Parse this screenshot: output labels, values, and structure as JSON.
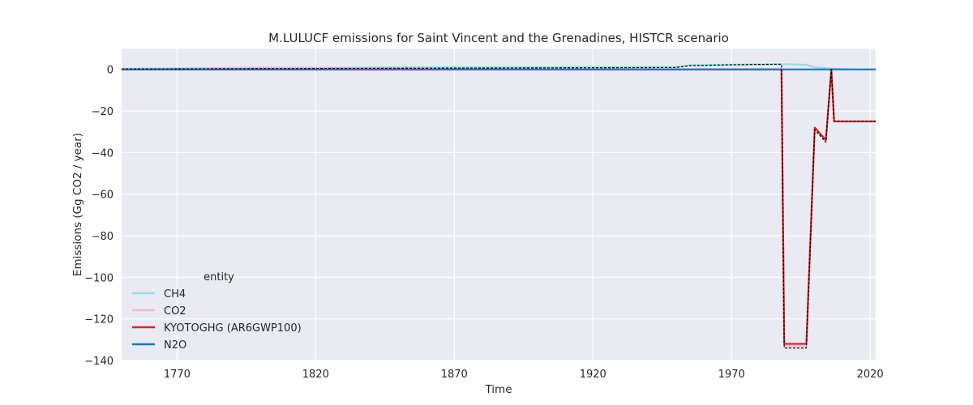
{
  "chart_data": {
    "type": "line",
    "title": "M.LULUCF emissions for Saint Vincent and the Grenadines, HISTCR scenario",
    "xlabel": "Time",
    "ylabel": "Emissions (Gg CO2 / year)",
    "xlim": [
      1750,
      2022
    ],
    "ylim": [
      -140,
      10
    ],
    "xticks": [
      1770,
      1820,
      1870,
      1920,
      1970,
      2020
    ],
    "yticks": [
      0,
      -20,
      -40,
      -60,
      -80,
      -100,
      -120,
      -140
    ],
    "tick_labels": {
      "x": [
        "1770",
        "1820",
        "1870",
        "1920",
        "1970",
        "2020"
      ],
      "y": [
        "0",
        "−20",
        "−40",
        "−60",
        "−80",
        "−100",
        "−120",
        "−140"
      ]
    },
    "grid": true,
    "legend": {
      "title": "entity",
      "placement": "lower-left",
      "entries": [
        "CH4",
        "CO2",
        "KYOTOGHG (AR6GWP100)",
        "N2O"
      ]
    },
    "colors": {
      "CH4": "#9edae5",
      "CO2": "#f7b6d2",
      "KYOTOGHG": "#d62728",
      "N2O": "#1f77b4",
      "total_dashed": "#000000",
      "background": "#eaeaf2",
      "grid": "#ffffff"
    },
    "series": [
      {
        "name": "CH4",
        "x": [
          1750,
          1800,
          1850,
          1900,
          1950,
          1955,
          1970,
          1980,
          1990,
          1997,
          2000,
          2005,
          2010,
          2015,
          2022
        ],
        "y": [
          0.3,
          0.8,
          1.0,
          1.1,
          1.2,
          2.0,
          2.3,
          2.5,
          2.5,
          2.2,
          1.0,
          0.5,
          0.2,
          0.0,
          0.0
        ]
      },
      {
        "name": "CO2",
        "x": [
          1750,
          1988,
          1989,
          1996,
          1997,
          2000,
          2004,
          2006,
          2007,
          2022
        ],
        "y": [
          0,
          0,
          -133,
          -133,
          -133,
          -28,
          -34,
          0,
          -25,
          -25
        ]
      },
      {
        "name": "KYOTOGHG (AR6GWP100)",
        "x": [
          1750,
          1988,
          1989,
          1996,
          1997,
          2000,
          2004,
          2006,
          2007,
          2022
        ],
        "y": [
          0,
          0,
          -132,
          -132,
          -132,
          -28,
          -34,
          0,
          -25,
          -25
        ]
      },
      {
        "name": "N2O",
        "x": [
          1750,
          2022
        ],
        "y": [
          0,
          0
        ]
      },
      {
        "name": "",
        "x": [
          1750,
          1950,
          1955,
          1970,
          1988,
          1989,
          1996,
          1997,
          2000,
          2004,
          2006,
          2007,
          2022
        ],
        "y": [
          0.2,
          0.9,
          1.8,
          2.2,
          2.5,
          -134,
          -134,
          -134,
          -29,
          -35,
          0,
          -25,
          -25
        ]
      }
    ]
  }
}
